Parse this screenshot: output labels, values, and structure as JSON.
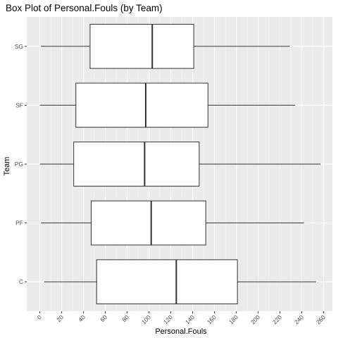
{
  "chart_data": {
    "type": "boxplot",
    "title": "Box Plot of Personal.Fouls (by Team)",
    "xlabel": "Personal.Fouls",
    "ylabel": "Team",
    "xlim": [
      -12,
      268
    ],
    "xticks": [
      0,
      20,
      40,
      60,
      80,
      100,
      120,
      140,
      160,
      180,
      200,
      220,
      240,
      260
    ],
    "categories": [
      "C",
      "PF",
      "PG",
      "SF",
      "SG"
    ],
    "boxes": [
      {
        "category": "C",
        "min": 4,
        "q1": 52,
        "median": 125,
        "q3": 181,
        "max": 253
      },
      {
        "category": "PF",
        "min": 1,
        "q1": 47,
        "median": 102,
        "q3": 152,
        "max": 242
      },
      {
        "category": "PG",
        "min": 0,
        "q1": 31,
        "median": 96,
        "q3": 146,
        "max": 257
      },
      {
        "category": "SF",
        "min": 0,
        "q1": 33,
        "median": 97,
        "q3": 154,
        "max": 234
      },
      {
        "category": "SG",
        "min": 1,
        "q1": 46,
        "median": 103,
        "q3": 141,
        "max": 229
      }
    ],
    "grid": true,
    "colors": {
      "panel": "#ebebeb",
      "grid_major": "#ffffff",
      "grid_minor": "#f5f5f5",
      "box_fill": "#ffffff",
      "box_stroke": "#333333",
      "tick_text": "#4d4d4d"
    }
  }
}
